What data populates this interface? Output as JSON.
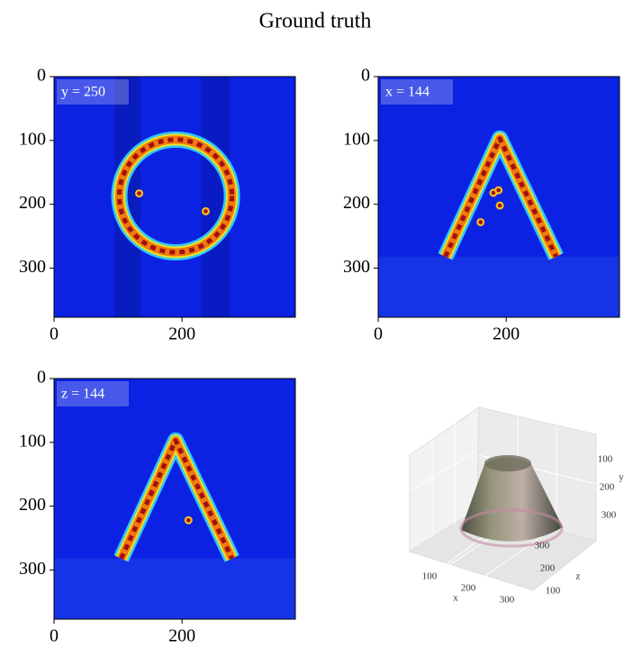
{
  "title": "Ground truth",
  "chart_data": [
    {
      "type": "image",
      "annotation": "y = 250",
      "xlim": [
        0,
        377
      ],
      "ylim": [
        377,
        0
      ],
      "xticks": [
        0,
        200
      ],
      "yticks": [
        0,
        100,
        200,
        300
      ]
    },
    {
      "type": "image",
      "annotation": "x = 144",
      "xlim": [
        0,
        377
      ],
      "ylim": [
        377,
        0
      ],
      "xticks": [
        0,
        200
      ],
      "yticks": [
        0,
        100,
        200,
        300
      ]
    },
    {
      "type": "image",
      "annotation": "z = 144",
      "xlim": [
        0,
        377
      ],
      "ylim": [
        377,
        0
      ],
      "xticks": [
        0,
        200
      ],
      "yticks": [
        0,
        100,
        200,
        300
      ]
    },
    {
      "type": "scatter3d",
      "xlabel": "x",
      "ylabel": "y",
      "zlabel": "z",
      "xlim": [
        0,
        377
      ],
      "ylim": [
        0,
        377
      ],
      "zlim": [
        0,
        377
      ],
      "xticks": [
        100,
        200,
        300
      ],
      "yticks": [
        100,
        200,
        300
      ],
      "zticks": [
        100,
        200,
        300
      ]
    }
  ]
}
